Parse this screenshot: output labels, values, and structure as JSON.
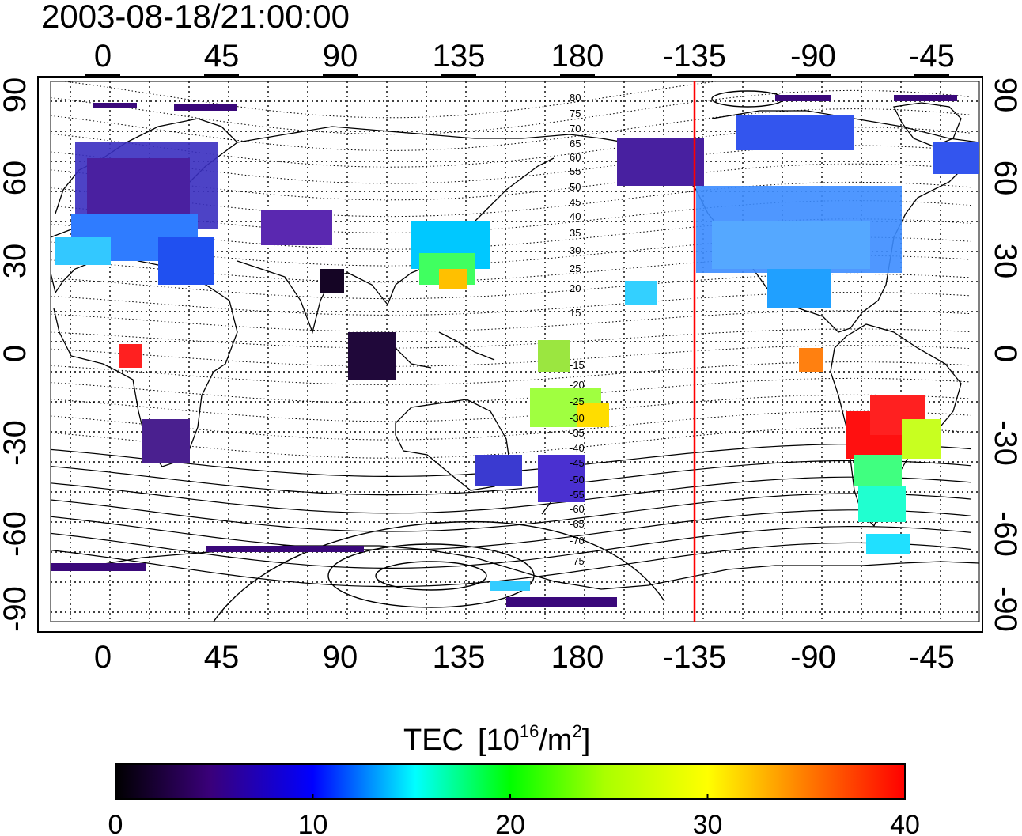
{
  "title": "2003-08-18/21:00:00",
  "map": {
    "top_lon_ticks": [
      "0",
      "45",
      "90",
      "135",
      "180",
      "-135",
      "-90",
      "-45"
    ],
    "bottom_lon_ticks": [
      "0",
      "45",
      "90",
      "135",
      "180",
      "-135",
      "-90",
      "-45"
    ],
    "left_lat_ticks": [
      "90",
      "60",
      "30",
      "0",
      "-30",
      "-60",
      "-90"
    ],
    "right_lat_ticks": [
      "90",
      "60",
      "30",
      "0",
      "-30",
      "-60",
      "-90"
    ],
    "contour_labels_north": [
      "80",
      "75",
      "70",
      "65",
      "60",
      "55",
      "50",
      "45",
      "40",
      "35",
      "30",
      "25",
      "20",
      "15"
    ],
    "contour_labels_south": [
      "-15",
      "-20",
      "-25",
      "-30",
      "-35",
      "-40",
      "-45",
      "-50",
      "-55",
      "-60",
      "-65",
      "-70",
      "-75"
    ],
    "terminator_longitude": -135,
    "terminator_color": "#ff0000",
    "grid": true
  },
  "colorbar": {
    "label": "TEC",
    "unit_base": "[10",
    "unit_exp": "16",
    "unit_mid": "/m",
    "unit_exp2": "2",
    "unit_end": "]",
    "ticks": [
      "0",
      "10",
      "20",
      "30",
      "40"
    ],
    "range": [
      0,
      40
    ],
    "colors": [
      "#000000",
      "#3a007a",
      "#0000ff",
      "#00ffff",
      "#00ff00",
      "#ffff00",
      "#ff8000",
      "#ff0000"
    ]
  }
}
